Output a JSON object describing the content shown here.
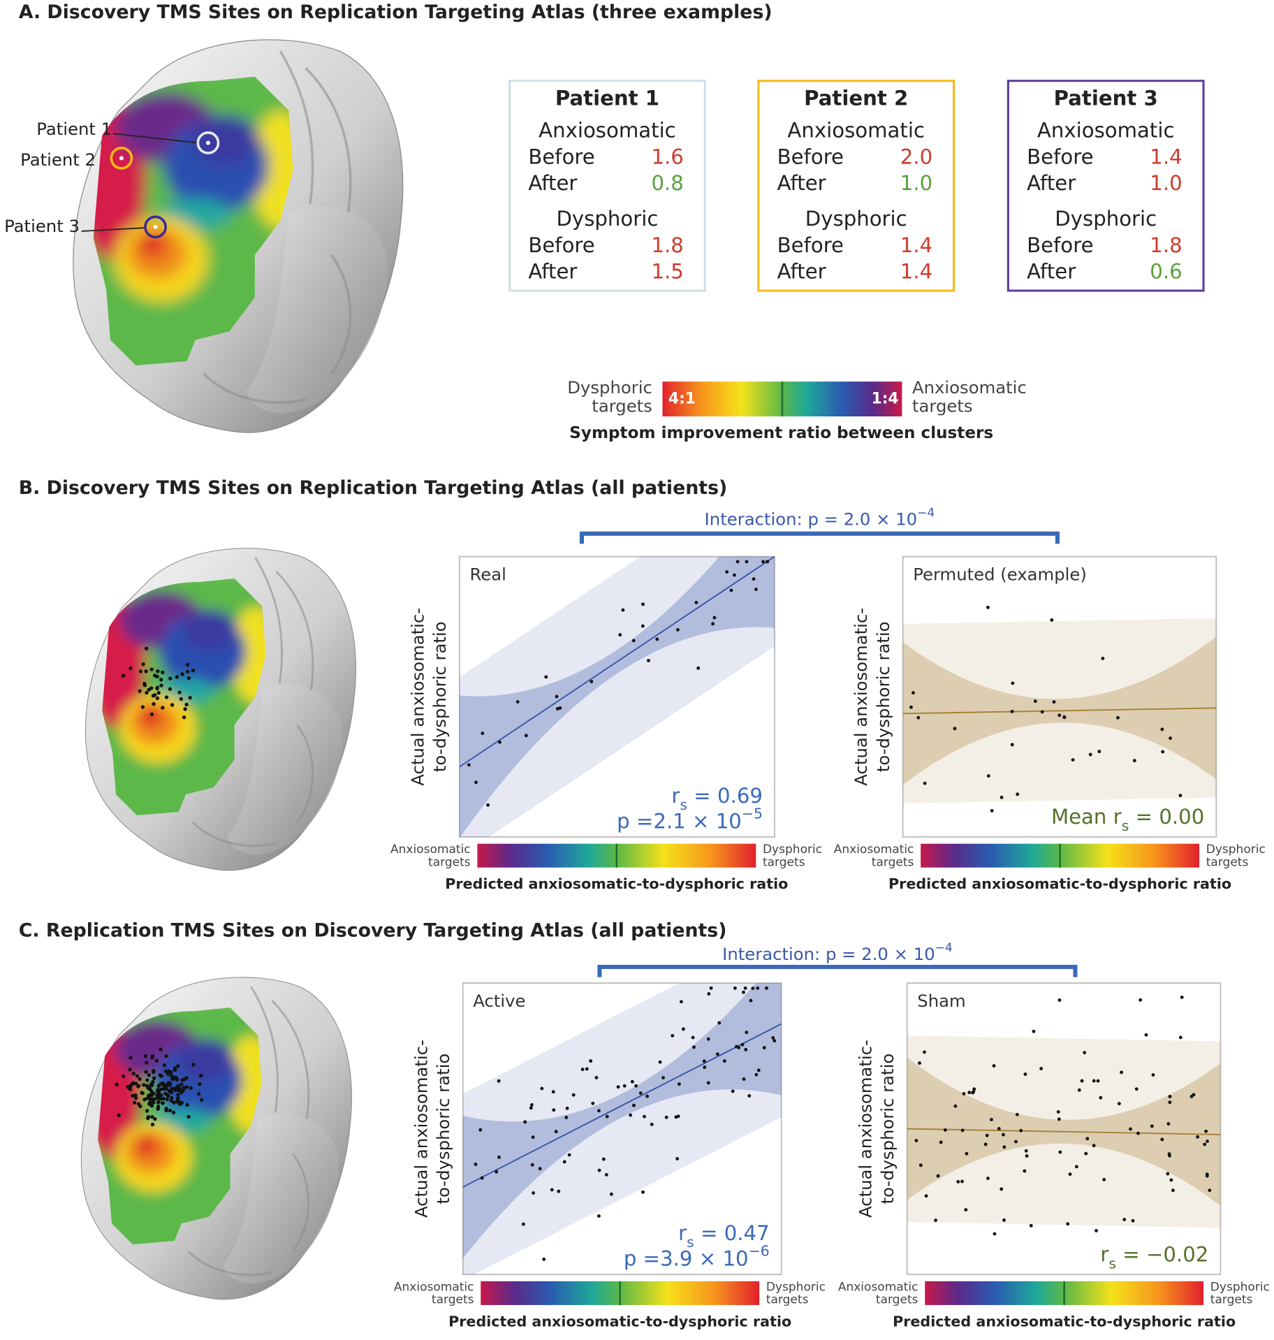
{
  "panel_a": {
    "title": "A. Discovery TMS Sites on Replication Targeting Atlas (three examples)",
    "brain_labels": [
      "Patient 1",
      "Patient 2",
      "Patient 3"
    ],
    "patients": [
      {
        "name": "Patient 1",
        "color": "#d3dde8",
        "clusters": [
          {
            "name": "Anxiosomatic",
            "rows": [
              {
                "label": "Before",
                "value": "1.6",
                "color": "#cf3b2b"
              },
              {
                "label": "After",
                "value": "0.8",
                "color": "#5aa03c"
              }
            ]
          },
          {
            "name": "Dysphoric",
            "rows": [
              {
                "label": "Before",
                "value": "1.8",
                "color": "#cf3b2b"
              },
              {
                "label": "After",
                "value": "1.5",
                "color": "#cf3b2b"
              }
            ]
          }
        ]
      },
      {
        "name": "Patient 2",
        "color": "#f5b818",
        "clusters": [
          {
            "name": "Anxiosomatic",
            "rows": [
              {
                "label": "Before",
                "value": "2.0",
                "color": "#cf3b2b"
              },
              {
                "label": "After",
                "value": "1.0",
                "color": "#5aa03c"
              }
            ]
          },
          {
            "name": "Dysphoric",
            "rows": [
              {
                "label": "Before",
                "value": "1.4",
                "color": "#cf3b2b"
              },
              {
                "label": "After",
                "value": "1.4",
                "color": "#cf3b2b"
              }
            ]
          }
        ]
      },
      {
        "name": "Patient 3",
        "color": "#5b3c96",
        "clusters": [
          {
            "name": "Anxiosomatic",
            "rows": [
              {
                "label": "Before",
                "value": "1.4",
                "color": "#cf3b2b"
              },
              {
                "label": "After",
                "value": "1.0",
                "color": "#cf3b2b"
              }
            ]
          },
          {
            "name": "Dysphoric",
            "rows": [
              {
                "label": "Before",
                "value": "1.8",
                "color": "#cf3b2b"
              },
              {
                "label": "After",
                "value": "0.6",
                "color": "#5aa03c"
              }
            ]
          }
        ]
      }
    ],
    "colorbar": {
      "left_label": [
        "Dysphoric",
        "targets"
      ],
      "left_tick": "4:1",
      "right_tick": "1:4",
      "right_label": [
        "Anxiosomatic",
        "targets"
      ],
      "caption": "Symptom improvement ratio between clusters"
    }
  },
  "panel_b": {
    "title": "B. Discovery TMS Sites on Replication Targeting Atlas (all patients)",
    "interaction": [
      {
        "text": "Interaction: p = 2.0 × 10"
      },
      {
        "text": "−4",
        "pos": "sup"
      }
    ],
    "plots": [
      {
        "label": "Real",
        "color": "#3a58a8",
        "y_label": [
          "Actual anxiosomatic-",
          "to-dysphoric ratio"
        ],
        "stats": [
          [
            {
              "text": "r"
            },
            {
              "text": "s",
              "pos": "sub"
            },
            {
              "text": " = 0.69"
            }
          ],
          [
            {
              "text": "p =2.1 × 10"
            },
            {
              "text": "−5",
              "pos": "sup"
            }
          ]
        ],
        "stats_color": "#3a6ab8",
        "colorbar": {
          "left": [
            "Anxiosomatic",
            "targets"
          ],
          "right": [
            "Dysphoric",
            "targets"
          ],
          "caption": "Predicted anxiosomatic-to-dysphoric ratio"
        }
      },
      {
        "label": "Permuted (example)",
        "color": "#a8823a",
        "y_label": [
          "Actual anxiosomatic-",
          "to-dysphoric ratio"
        ],
        "stats": [
          [
            {
              "text": "Mean r"
            },
            {
              "text": "s",
              "pos": "sub"
            },
            {
              "text": " = 0.00"
            }
          ]
        ],
        "stats_color": "#55702a",
        "colorbar": {
          "left": [
            "Anxiosomatic",
            "targets"
          ],
          "right": [
            "Dysphoric",
            "targets"
          ],
          "caption": "Predicted anxiosomatic-to-dysphoric ratio"
        }
      }
    ]
  },
  "panel_c": {
    "title": "C. Replication TMS Sites on Discovery Targeting Atlas (all patients)",
    "interaction": [
      {
        "text": "Interaction: p = 2.0 × 10"
      },
      {
        "text": "−4",
        "pos": "sup"
      }
    ],
    "plots": [
      {
        "label": "Active",
        "color": "#3a58a8",
        "y_label": [
          "Actual anxiosomatic-",
          "to-dysphoric ratio"
        ],
        "stats": [
          [
            {
              "text": "r"
            },
            {
              "text": "s",
              "pos": "sub"
            },
            {
              "text": " = 0.47"
            }
          ],
          [
            {
              "text": "p =3.9 × 10"
            },
            {
              "text": "−6",
              "pos": "sup"
            }
          ]
        ],
        "stats_color": "#3a6ab8",
        "colorbar": {
          "left": [
            "Anxiosomatic",
            "targets"
          ],
          "right": [
            "Dysphoric",
            "targets"
          ],
          "caption": "Predicted anxiosomatic-to-dysphoric ratio"
        }
      },
      {
        "label": "Sham",
        "color": "#a8823a",
        "y_label": [
          "Actual anxiosomatic-",
          "to-dysphoric ratio"
        ],
        "stats": [
          [
            {
              "text": "r"
            },
            {
              "text": "s",
              "pos": "sub"
            },
            {
              "text": " = −0.02"
            }
          ]
        ],
        "stats_color": "#55702a",
        "colorbar": {
          "left": [
            "Anxiosomatic",
            "targets"
          ],
          "right": [
            "Dysphoric",
            "targets"
          ],
          "caption": "Predicted anxiosomatic-to-dysphoric ratio"
        }
      }
    ]
  }
}
